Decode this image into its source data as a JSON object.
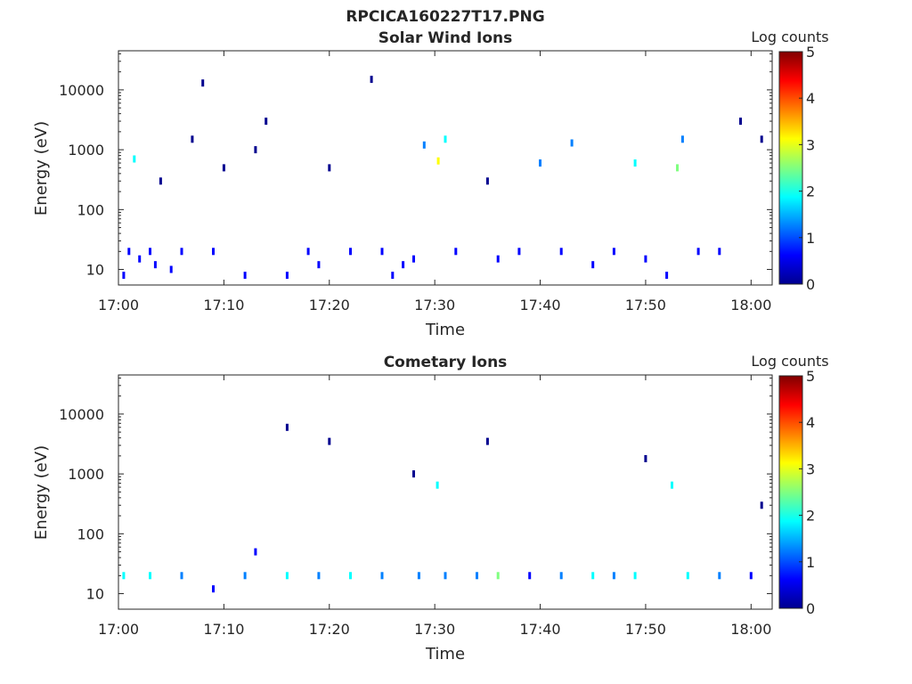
{
  "figure": {
    "suptitle": "RPCICA160227T17.PNG"
  },
  "colors": {
    "colormap": [
      "#00008f",
      "#0000ff",
      "#0080ff",
      "#00ffff",
      "#80ff80",
      "#ffff00",
      "#ff8000",
      "#ff0000",
      "#800000"
    ],
    "axis": "#262626"
  },
  "chart_data": [
    {
      "type": "heatmap",
      "title": "Solar Wind Ions",
      "xlabel": "Time",
      "ylabel": "Energy (eV)",
      "y_scale": "log",
      "xlim": [
        "17:00",
        "18:02"
      ],
      "ylim": [
        5.5,
        45000
      ],
      "x_ticks": [
        "17:00",
        "17:10",
        "17:20",
        "17:30",
        "17:40",
        "17:50",
        "18:00"
      ],
      "y_ticks": [
        "10",
        "100",
        "1000",
        "10000"
      ],
      "colorbar": {
        "label": "Log counts",
        "range": [
          0,
          5
        ],
        "ticks": [
          "0",
          "1",
          "2",
          "3",
          "4",
          "5"
        ]
      },
      "points": [
        {
          "t": "17:00:30",
          "e": 8,
          "v": 0.4
        },
        {
          "t": "17:01:00",
          "e": 20,
          "v": 0.5
        },
        {
          "t": "17:01:30",
          "e": 700,
          "v": 2.0
        },
        {
          "t": "17:02:00",
          "e": 15,
          "v": 0.6
        },
        {
          "t": "17:03:00",
          "e": 20,
          "v": 0.7
        },
        {
          "t": "17:03:30",
          "e": 12,
          "v": 0.8
        },
        {
          "t": "17:04:00",
          "e": 300,
          "v": 0.3
        },
        {
          "t": "17:05:00",
          "e": 10,
          "v": 0.5
        },
        {
          "t": "17:06:00",
          "e": 20,
          "v": 0.4
        },
        {
          "t": "17:07:00",
          "e": 1500,
          "v": 0.3
        },
        {
          "t": "17:08:00",
          "e": 13000,
          "v": 0.3
        },
        {
          "t": "17:09:00",
          "e": 20,
          "v": 0.6
        },
        {
          "t": "17:10:00",
          "e": 500,
          "v": 0.3
        },
        {
          "t": "17:12:00",
          "e": 8,
          "v": 0.4
        },
        {
          "t": "17:13:00",
          "e": 1000,
          "v": 0.3
        },
        {
          "t": "17:14:00",
          "e": 3000,
          "v": 0.3
        },
        {
          "t": "17:16:00",
          "e": 8,
          "v": 0.4
        },
        {
          "t": "17:18:00",
          "e": 20,
          "v": 0.5
        },
        {
          "t": "17:19:00",
          "e": 12,
          "v": 0.5
        },
        {
          "t": "17:20:00",
          "e": 500,
          "v": 0.3
        },
        {
          "t": "17:22:00",
          "e": 20,
          "v": 0.5
        },
        {
          "t": "17:24:00",
          "e": 15000,
          "v": 0.3
        },
        {
          "t": "17:25:00",
          "e": 20,
          "v": 0.5
        },
        {
          "t": "17:26:00",
          "e": 8,
          "v": 0.6
        },
        {
          "t": "17:27:00",
          "e": 12,
          "v": 0.4
        },
        {
          "t": "17:28:00",
          "e": 15,
          "v": 0.5
        },
        {
          "t": "17:29:00",
          "e": 1200,
          "v": 1.0
        },
        {
          "t": "17:30:20",
          "e": 650,
          "v": 3.0
        },
        {
          "t": "17:31:00",
          "e": 1500,
          "v": 1.6
        },
        {
          "t": "17:32:00",
          "e": 20,
          "v": 0.5
        },
        {
          "t": "17:35:00",
          "e": 300,
          "v": 0.3
        },
        {
          "t": "17:36:00",
          "e": 15,
          "v": 0.6
        },
        {
          "t": "17:38:00",
          "e": 20,
          "v": 0.4
        },
        {
          "t": "17:40:00",
          "e": 600,
          "v": 1.2
        },
        {
          "t": "17:42:00",
          "e": 20,
          "v": 0.5
        },
        {
          "t": "17:43:00",
          "e": 1300,
          "v": 1.4
        },
        {
          "t": "17:45:00",
          "e": 12,
          "v": 0.6
        },
        {
          "t": "17:47:00",
          "e": 20,
          "v": 0.5
        },
        {
          "t": "17:49:00",
          "e": 600,
          "v": 1.6
        },
        {
          "t": "17:50:00",
          "e": 15,
          "v": 0.5
        },
        {
          "t": "17:52:00",
          "e": 8,
          "v": 0.4
        },
        {
          "t": "17:53:00",
          "e": 500,
          "v": 2.4
        },
        {
          "t": "17:53:30",
          "e": 1500,
          "v": 1.5
        },
        {
          "t": "17:55:00",
          "e": 20,
          "v": 0.5
        },
        {
          "t": "17:57:00",
          "e": 20,
          "v": 0.6
        },
        {
          "t": "17:59:00",
          "e": 3000,
          "v": 0.3
        },
        {
          "t": "18:01:00",
          "e": 1500,
          "v": 0.3
        }
      ]
    },
    {
      "type": "heatmap",
      "title": "Cometary Ions",
      "xlabel": "Time",
      "ylabel": "Energy (eV)",
      "y_scale": "log",
      "xlim": [
        "17:00",
        "18:02"
      ],
      "ylim": [
        5.5,
        45000
      ],
      "x_ticks": [
        "17:00",
        "17:10",
        "17:20",
        "17:30",
        "17:40",
        "17:50",
        "18:00"
      ],
      "y_ticks": [
        "10",
        "100",
        "1000",
        "10000"
      ],
      "colorbar": {
        "label": "Log counts",
        "range": [
          0,
          5
        ],
        "ticks": [
          "0",
          "1",
          "2",
          "3",
          "4",
          "5"
        ]
      },
      "points": [
        {
          "t": "17:00:30",
          "e": 20,
          "v": 1.6
        },
        {
          "t": "17:03:00",
          "e": 20,
          "v": 2.0
        },
        {
          "t": "17:06:00",
          "e": 20,
          "v": 1.0
        },
        {
          "t": "17:09:00",
          "e": 12,
          "v": 0.6
        },
        {
          "t": "17:12:00",
          "e": 20,
          "v": 1.2
        },
        {
          "t": "17:13:00",
          "e": 50,
          "v": 0.6
        },
        {
          "t": "17:16:00",
          "e": 6000,
          "v": 0.3
        },
        {
          "t": "17:16:00",
          "e": 20,
          "v": 1.8
        },
        {
          "t": "17:19:00",
          "e": 20,
          "v": 1.0
        },
        {
          "t": "17:20:00",
          "e": 3500,
          "v": 0.3
        },
        {
          "t": "17:22:00",
          "e": 20,
          "v": 1.6
        },
        {
          "t": "17:25:00",
          "e": 20,
          "v": 1.4
        },
        {
          "t": "17:28:00",
          "e": 1000,
          "v": 0.3
        },
        {
          "t": "17:28:30",
          "e": 20,
          "v": 1.2
        },
        {
          "t": "17:30:15",
          "e": 650,
          "v": 2.0
        },
        {
          "t": "17:31:00",
          "e": 20,
          "v": 1.0
        },
        {
          "t": "17:34:00",
          "e": 20,
          "v": 1.4
        },
        {
          "t": "17:35:00",
          "e": 3500,
          "v": 0.3
        },
        {
          "t": "17:36:00",
          "e": 20,
          "v": 2.2
        },
        {
          "t": "17:39:00",
          "e": 20,
          "v": 0.8
        },
        {
          "t": "17:42:00",
          "e": 20,
          "v": 1.2
        },
        {
          "t": "17:45:00",
          "e": 20,
          "v": 2.0
        },
        {
          "t": "17:47:00",
          "e": 20,
          "v": 1.0
        },
        {
          "t": "17:49:00",
          "e": 20,
          "v": 1.6
        },
        {
          "t": "17:50:00",
          "e": 1800,
          "v": 0.3
        },
        {
          "t": "17:52:30",
          "e": 650,
          "v": 1.8
        },
        {
          "t": "17:54:00",
          "e": 20,
          "v": 1.6
        },
        {
          "t": "17:57:00",
          "e": 20,
          "v": 1.0
        },
        {
          "t": "18:00:00",
          "e": 20,
          "v": 0.8
        },
        {
          "t": "18:01:00",
          "e": 300,
          "v": 0.3
        }
      ]
    }
  ]
}
